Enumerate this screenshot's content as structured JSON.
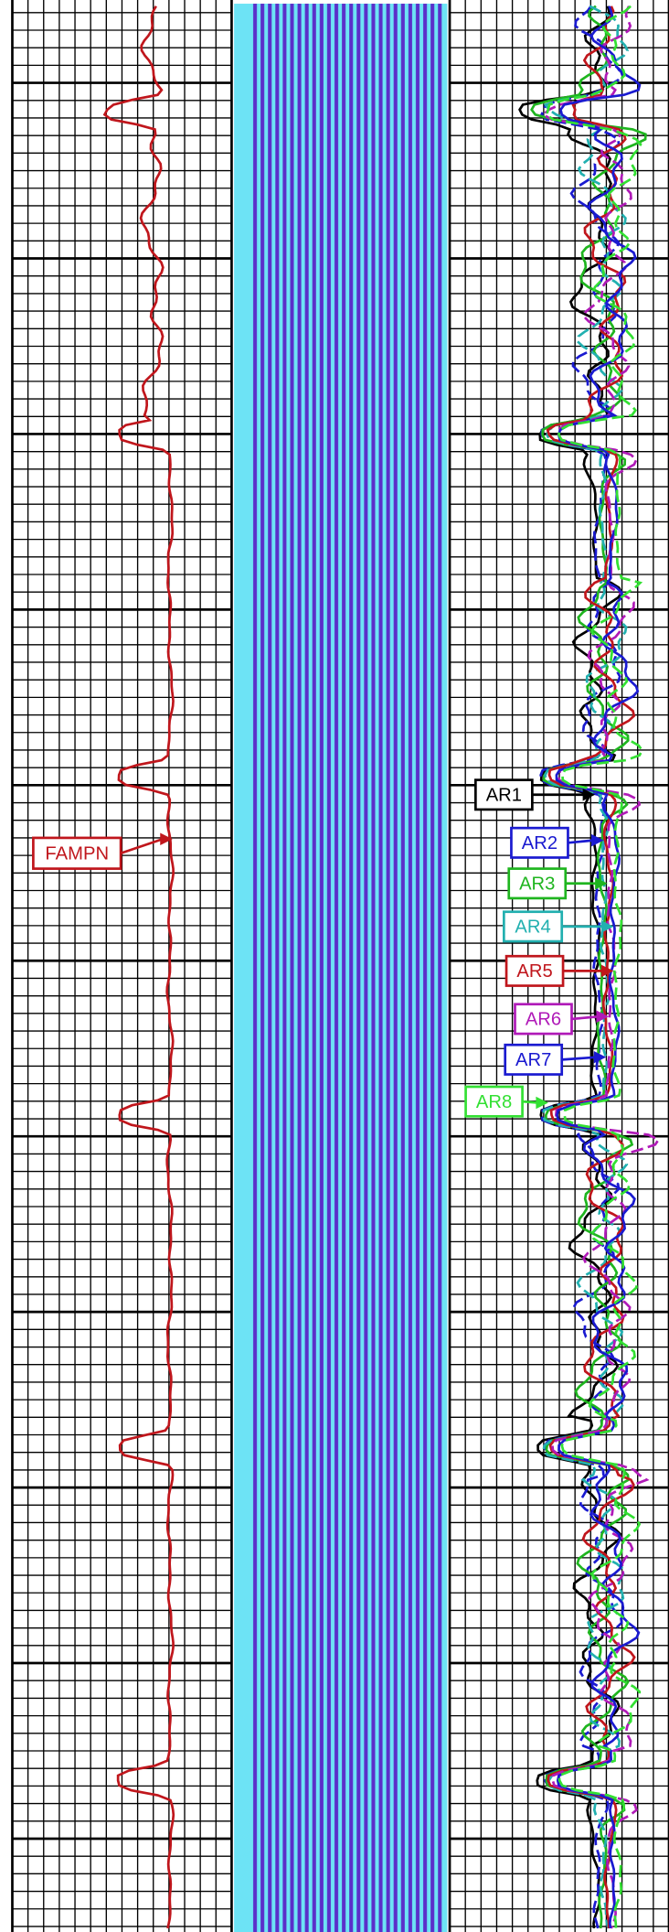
{
  "curve_labels": [
    "FAMPN",
    "AR1",
    "AR2",
    "AR3",
    "AR4",
    "AR5",
    "AR6",
    "AR7",
    "AR8"
  ]
}
